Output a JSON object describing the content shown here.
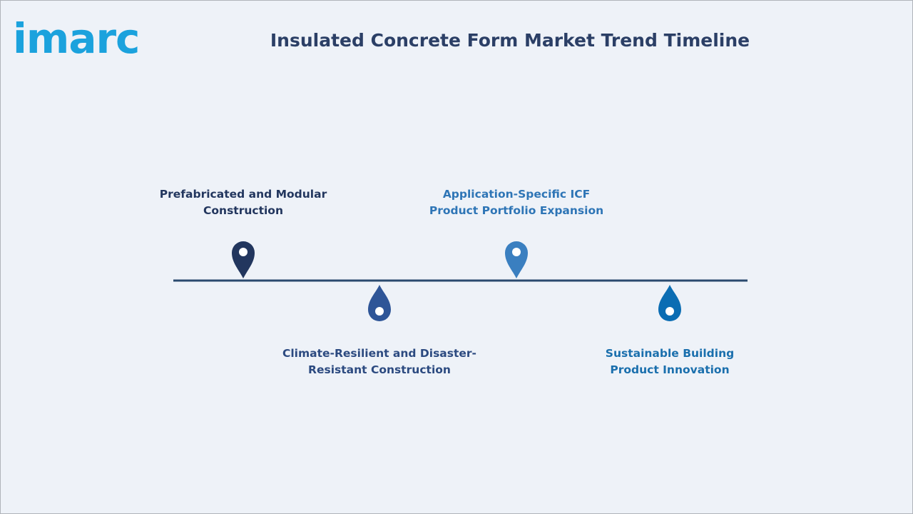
{
  "header": {
    "logo": "imarc",
    "title": "Insulated Concrete Form Market Trend Timeline"
  },
  "timeline": {
    "items": [
      {
        "lines": [
          "Prefabricated and Modular",
          "Construction"
        ]
      },
      {
        "lines": [
          "Climate-Resilient and Disaster-",
          "Resistant Construction"
        ]
      },
      {
        "lines": [
          "Application-Specific ICF",
          "Product Portfolio Expansion"
        ]
      },
      {
        "lines": [
          "Sustainable Building",
          "Product Innovation"
        ]
      }
    ]
  }
}
